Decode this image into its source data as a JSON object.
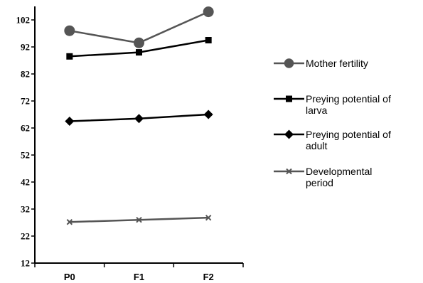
{
  "chart_data": {
    "type": "line",
    "categories": [
      "P0",
      "F1",
      "F2"
    ],
    "ylim": [
      12,
      107
    ],
    "yticks": [
      12,
      22,
      32,
      42,
      52,
      62,
      72,
      82,
      92,
      102
    ],
    "grid": false,
    "legend_position": "right",
    "series": [
      {
        "name": [
          "Mother fertility"
        ],
        "values": [
          98,
          93.5,
          105
        ],
        "color": "#555555",
        "marker": "circle"
      },
      {
        "name": [
          "Preying potential of",
          "larva"
        ],
        "values": [
          88.5,
          90,
          94.5
        ],
        "color": "#000000",
        "marker": "square"
      },
      {
        "name": [
          "Preying potential of",
          "adult"
        ],
        "values": [
          64.5,
          65.5,
          67
        ],
        "color": "#000000",
        "marker": "diamond"
      },
      {
        "name": [
          "Developmental",
          "period"
        ],
        "values": [
          27.2,
          28,
          28.8
        ],
        "color": "#555555",
        "marker": "x"
      }
    ]
  }
}
